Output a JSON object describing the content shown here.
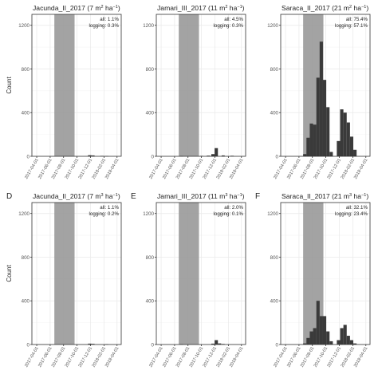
{
  "chart_data": [
    {
      "panel": "",
      "title": "Jacunda_II_2017",
      "density": "7 m",
      "unit_exp": "2",
      "unit_tail": " ha",
      "annotation_all": "all: 1.1%",
      "annotation_logging": "logging: 0.3%",
      "type": "bar",
      "ylabel": "Count",
      "ylim": [
        0,
        1300
      ],
      "yticks": [
        "0",
        "400",
        "800",
        "1200"
      ],
      "xlabels": [
        "2017-04-01",
        "2017-06-01",
        "2017-08-01",
        "2017-10-01",
        "2017-12-01",
        "2018-02-01",
        "2018-04-01"
      ],
      "xlim": [
        "2017-03-10",
        "2018-04-20"
      ],
      "shaded": [
        "2017-06-20",
        "2017-09-20"
      ],
      "bars": [
        {
          "start": "2017-11-20",
          "end": "2017-12-05",
          "value": 10
        },
        {
          "start": "2017-12-05",
          "end": "2017-12-20",
          "value": 8
        },
        {
          "start": "2018-01-15",
          "end": "2018-01-30",
          "value": 4
        },
        {
          "start": "2018-02-05",
          "end": "2018-02-20",
          "value": 3
        }
      ]
    },
    {
      "panel": "",
      "title": "Jamari_III_2017",
      "density": "11 m",
      "unit_exp": "2",
      "unit_tail": " ha",
      "annotation_all": "all: 4.5%",
      "annotation_logging": "logging: 0.3%",
      "type": "bar",
      "ylabel": "",
      "ylim": [
        0,
        1300
      ],
      "yticks": [
        "0",
        "400",
        "800",
        "1200"
      ],
      "xlabels": [
        "2017-04-01",
        "2017-06-01",
        "2017-08-01",
        "2017-10-01",
        "2017-12-01",
        "2018-02-01",
        "2018-04-01"
      ],
      "xlim": [
        "2017-03-10",
        "2018-04-20"
      ],
      "shaded": [
        "2017-06-20",
        "2017-09-20"
      ],
      "bars": [
        {
          "start": "2017-06-25",
          "end": "2017-07-10",
          "value": 3
        },
        {
          "start": "2017-09-25",
          "end": "2017-10-10",
          "value": 4
        },
        {
          "start": "2017-10-25",
          "end": "2017-11-10",
          "value": 6
        },
        {
          "start": "2017-11-15",
          "end": "2017-11-30",
          "value": 20
        },
        {
          "start": "2017-11-30",
          "end": "2017-12-15",
          "value": 75
        },
        {
          "start": "2018-01-01",
          "end": "2018-01-15",
          "value": 8
        },
        {
          "start": "2018-02-10",
          "end": "2018-02-25",
          "value": 5
        }
      ]
    },
    {
      "panel": "",
      "title": "Saraca_II_2017",
      "density": "21 m",
      "unit_exp": "2",
      "unit_tail": " ha",
      "annotation_all": "all: 75.4%",
      "annotation_logging": "logging: 57.1%",
      "type": "bar",
      "ylabel": "",
      "ylim": [
        0,
        1300
      ],
      "yticks": [
        "0",
        "400",
        "800",
        "1200"
      ],
      "xlabels": [
        "2017-04-01",
        "2017-06-01",
        "2017-08-01",
        "2017-10-01",
        "2017-12-01",
        "2018-02-01",
        "2018-04-01"
      ],
      "xlim": [
        "2017-03-10",
        "2018-04-20"
      ],
      "shaded": [
        "2017-06-20",
        "2017-09-20"
      ],
      "bars": [
        {
          "start": "2017-06-20",
          "end": "2017-07-05",
          "value": 20
        },
        {
          "start": "2017-07-05",
          "end": "2017-07-20",
          "value": 170
        },
        {
          "start": "2017-07-20",
          "end": "2017-08-04",
          "value": 300
        },
        {
          "start": "2017-08-04",
          "end": "2017-08-19",
          "value": 290
        },
        {
          "start": "2017-08-19",
          "end": "2017-09-03",
          "value": 720
        },
        {
          "start": "2017-09-03",
          "end": "2017-09-18",
          "value": 1050
        },
        {
          "start": "2017-09-18",
          "end": "2017-10-03",
          "value": 700
        },
        {
          "start": "2017-10-03",
          "end": "2017-10-18",
          "value": 450
        },
        {
          "start": "2017-10-18",
          "end": "2017-11-02",
          "value": 40
        },
        {
          "start": "2017-11-20",
          "end": "2017-12-05",
          "value": 140
        },
        {
          "start": "2017-12-05",
          "end": "2017-12-20",
          "value": 430
        },
        {
          "start": "2017-12-20",
          "end": "2018-01-04",
          "value": 400
        },
        {
          "start": "2018-01-04",
          "end": "2018-01-19",
          "value": 310
        },
        {
          "start": "2018-01-19",
          "end": "2018-02-03",
          "value": 180
        },
        {
          "start": "2018-02-03",
          "end": "2018-02-18",
          "value": 60
        }
      ]
    },
    {
      "panel": "D",
      "title": "Jacunda_II_2017",
      "density": "7 m",
      "unit_exp": "3",
      "unit_tail": " ha",
      "annotation_all": "all: 1.1%",
      "annotation_logging": "logging: 0.2%",
      "type": "bar",
      "ylabel": "Count",
      "ylim": [
        0,
        1300
      ],
      "yticks": [
        "0",
        "400",
        "800",
        "1200"
      ],
      "xlabels": [
        "2017-04-01",
        "2017-06-01",
        "2017-08-01",
        "2017-10-01",
        "2017-12-01",
        "2018-02-01",
        "2018-04-01"
      ],
      "xlim": [
        "2017-03-10",
        "2018-04-20"
      ],
      "shaded": [
        "2017-06-20",
        "2017-09-20"
      ],
      "bars": [
        {
          "start": "2017-11-20",
          "end": "2017-12-05",
          "value": 8
        },
        {
          "start": "2017-12-05",
          "end": "2017-12-20",
          "value": 6
        },
        {
          "start": "2018-02-05",
          "end": "2018-02-20",
          "value": 3
        }
      ]
    },
    {
      "panel": "E",
      "title": "Jamari_III_2017",
      "density": "11 m",
      "unit_exp": "3",
      "unit_tail": " ha",
      "annotation_all": "all: 2.0%",
      "annotation_logging": "logging: 0.1%",
      "type": "bar",
      "ylabel": "",
      "ylim": [
        0,
        1300
      ],
      "yticks": [
        "0",
        "400",
        "800",
        "1200"
      ],
      "xlabels": [
        "2017-04-01",
        "2017-06-01",
        "2017-08-01",
        "2017-10-01",
        "2017-12-01",
        "2018-02-01",
        "2018-04-01"
      ],
      "xlim": [
        "2017-03-10",
        "2018-04-20"
      ],
      "shaded": [
        "2017-06-20",
        "2017-09-20"
      ],
      "bars": [
        {
          "start": "2017-06-25",
          "end": "2017-07-10",
          "value": 3
        },
        {
          "start": "2017-11-15",
          "end": "2017-11-30",
          "value": 8
        },
        {
          "start": "2017-11-30",
          "end": "2017-12-15",
          "value": 40
        },
        {
          "start": "2017-12-15",
          "end": "2017-12-30",
          "value": 10
        },
        {
          "start": "2018-01-01",
          "end": "2018-01-15",
          "value": 5
        }
      ]
    },
    {
      "panel": "F",
      "title": "Saraca_II_2017",
      "density": "21 m",
      "unit_exp": "3",
      "unit_tail": " ha",
      "annotation_all": "all: 32.1%",
      "annotation_logging": "logging: 23.4%",
      "type": "bar",
      "ylabel": "",
      "ylim": [
        0,
        1300
      ],
      "yticks": [
        "0",
        "400",
        "800",
        "1200"
      ],
      "xlabels": [
        "2017-04-01",
        "2017-06-01",
        "2017-08-01",
        "2017-10-01",
        "2017-12-01",
        "2018-02-01",
        "2018-04-01"
      ],
      "xlim": [
        "2017-03-10",
        "2018-04-20"
      ],
      "shaded": [
        "2017-06-20",
        "2017-09-20"
      ],
      "bars": [
        {
          "start": "2017-06-20",
          "end": "2017-07-05",
          "value": 10
        },
        {
          "start": "2017-07-05",
          "end": "2017-07-20",
          "value": 60
        },
        {
          "start": "2017-07-20",
          "end": "2017-08-04",
          "value": 120
        },
        {
          "start": "2017-08-04",
          "end": "2017-08-19",
          "value": 150
        },
        {
          "start": "2017-08-19",
          "end": "2017-09-03",
          "value": 400
        },
        {
          "start": "2017-09-03",
          "end": "2017-09-18",
          "value": 260
        },
        {
          "start": "2017-09-18",
          "end": "2017-10-03",
          "value": 260
        },
        {
          "start": "2017-10-03",
          "end": "2017-10-18",
          "value": 120
        },
        {
          "start": "2017-10-18",
          "end": "2017-11-02",
          "value": 30
        },
        {
          "start": "2017-11-20",
          "end": "2017-12-05",
          "value": 40
        },
        {
          "start": "2017-12-05",
          "end": "2017-12-20",
          "value": 150
        },
        {
          "start": "2017-12-20",
          "end": "2018-01-04",
          "value": 180
        },
        {
          "start": "2018-01-04",
          "end": "2018-01-19",
          "value": 80
        },
        {
          "start": "2018-01-19",
          "end": "2018-02-03",
          "value": 40
        },
        {
          "start": "2018-02-03",
          "end": "2018-02-18",
          "value": 10
        }
      ]
    }
  ],
  "colors": {
    "bar": "#3a3a3a",
    "shade": "#999999",
    "grid": "#ebebeb",
    "frame": "#333333",
    "text": "#222222"
  }
}
